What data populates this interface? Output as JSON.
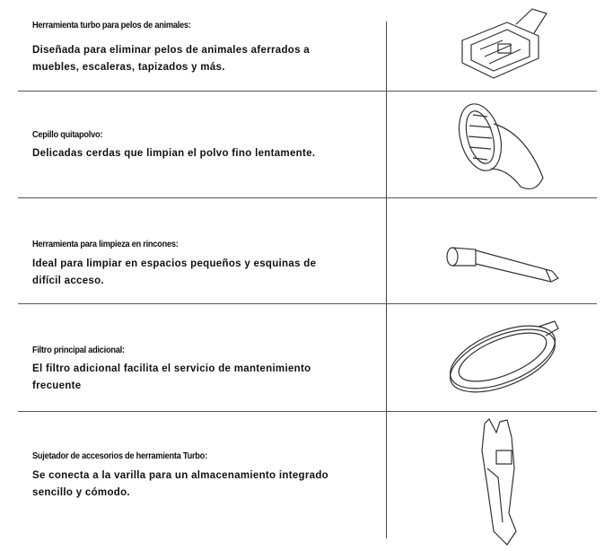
{
  "rows": [
    {
      "title": "Herramienta turbo para pelos de animales:",
      "description": "Diseñada para eliminar pelos de animales aferrados a muebles, escaleras, tapizados y más."
    },
    {
      "title": "Cepillo quitapolvo:",
      "description": "Delicadas cerdas que limpian el polvo fino lentamente."
    },
    {
      "title": "Herramienta para limpieza en rincones:",
      "description": "Ideal para limpiar en espacios pequeños y esquinas de difícil acceso."
    },
    {
      "title": "Filtro principal adicional:",
      "description": "El filtro adicional facilita el servicio de mantenimiento frecuente"
    },
    {
      "title": "Sujetador de accesorios de herramienta Turbo:",
      "description": "Se conecta a la varilla para un almacenamiento integrado sencillo y cómodo."
    }
  ]
}
